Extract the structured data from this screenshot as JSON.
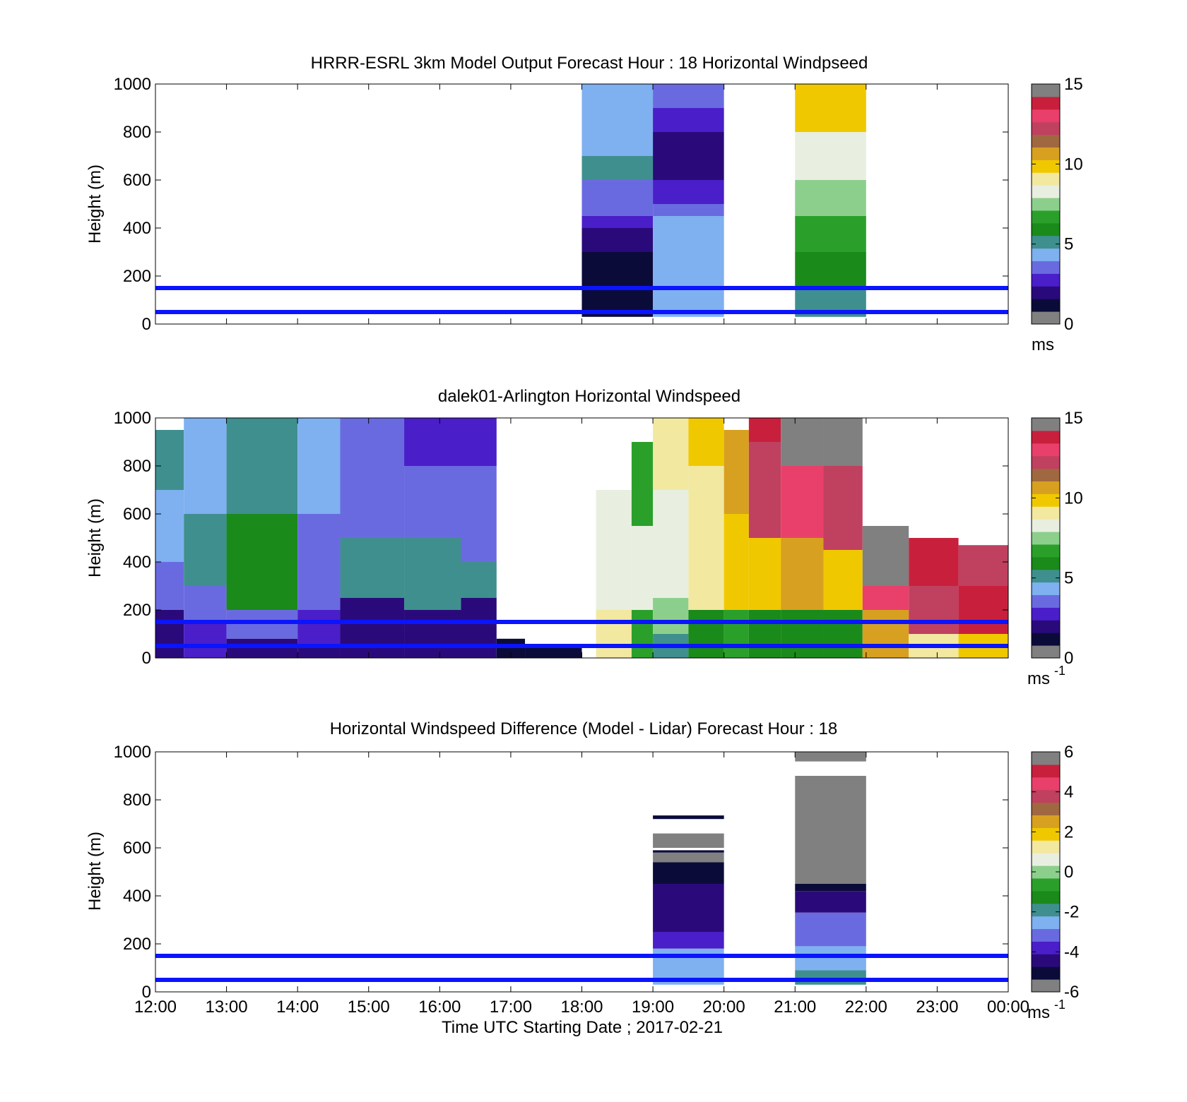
{
  "colors": {
    "ref_line": "#0a14ff",
    "colormap": [
      "#808080",
      "#0b0b3a",
      "#2a0a7a",
      "#4a1ec8",
      "#6a6ae0",
      "#7fb0f0",
      "#3f8f8f",
      "#1a8a1a",
      "#2aa02a",
      "#8ccf8c",
      "#e8efe0",
      "#f2e8a0",
      "#f0c800",
      "#d8a020",
      "#a06840",
      "#c04060",
      "#e8406a",
      "#c8203c",
      "#808080"
    ]
  },
  "x_ticks": [
    "12:00",
    "13:00",
    "14:00",
    "15:00",
    "16:00",
    "17:00",
    "18:00",
    "19:00",
    "20:00",
    "21:00",
    "22:00",
    "23:00",
    "00:00"
  ],
  "x_axis_label": "Time UTC  Starting Date ; 2017-02-21",
  "ref_lines_m": [
    150,
    50
  ],
  "chart_data": [
    {
      "type": "heatmap",
      "title": "HRRR-ESRL 3km Model Output   Forecast Hour : 18 Horizontal Windpseed",
      "ylabel": "Height (m)",
      "ylim": [
        0,
        1000
      ],
      "yticks": [
        "0",
        "200",
        "400",
        "600",
        "800",
        "1000"
      ],
      "colorbar": {
        "ticks": [
          "0",
          "5",
          "10",
          "15"
        ],
        "range": [
          0,
          15
        ],
        "unit": "ms",
        "unit_sup": ""
      },
      "columns": [
        {
          "start_hour": 18,
          "end_hour": 19,
          "bands": [
            {
              "y0": 700,
              "y1": 1000,
              "value": 4.3
            },
            {
              "y0": 600,
              "y1": 700,
              "value": 5.0
            },
            {
              "y0": 500,
              "y1": 600,
              "value": 3.4
            },
            {
              "y0": 450,
              "y1": 500,
              "value": 3.2
            },
            {
              "y0": 400,
              "y1": 450,
              "value": 2.3
            },
            {
              "y0": 300,
              "y1": 400,
              "value": 1.4
            },
            {
              "y0": 30,
              "y1": 300,
              "value": 0.6
            }
          ]
        },
        {
          "start_hour": 19,
          "end_hour": 20,
          "bands": [
            {
              "y0": 900,
              "y1": 1000,
              "value": 3.3
            },
            {
              "y0": 800,
              "y1": 900,
              "value": 2.8
            },
            {
              "y0": 600,
              "y1": 800,
              "value": 1.9
            },
            {
              "y0": 500,
              "y1": 600,
              "value": 2.6
            },
            {
              "y0": 450,
              "y1": 500,
              "value": 3.2
            },
            {
              "y0": 350,
              "y1": 450,
              "value": 4.0
            },
            {
              "y0": 100,
              "y1": 350,
              "value": 4.3
            },
            {
              "y0": 30,
              "y1": 100,
              "value": 3.8
            }
          ]
        },
        {
          "start_hour": 21,
          "end_hour": 22,
          "bands": [
            {
              "y0": 800,
              "y1": 1000,
              "value": 9.6
            },
            {
              "y0": 600,
              "y1": 800,
              "value": 8.6
            },
            {
              "y0": 450,
              "y1": 600,
              "value": 7.8
            },
            {
              "y0": 300,
              "y1": 450,
              "value": 6.6
            },
            {
              "y0": 150,
              "y1": 300,
              "value": 5.9
            },
            {
              "y0": 30,
              "y1": 150,
              "value": 5.3
            }
          ]
        }
      ]
    },
    {
      "type": "heatmap",
      "title": "dalek01-Arlington  Horizontal Windspeed",
      "ylabel": "Height (m)",
      "ylim": [
        0,
        1000
      ],
      "yticks": [
        "0",
        "200",
        "400",
        "600",
        "800",
        "1000"
      ],
      "colorbar": {
        "ticks": [
          "0",
          "5",
          "10",
          "15"
        ],
        "range": [
          0,
          15
        ],
        "unit": "ms",
        "unit_sup": "-1"
      },
      "columns": [
        {
          "start_hour": 12.0,
          "end_hour": 12.4,
          "bands": [
            {
              "y0": 700,
              "y1": 950,
              "value": 5.0
            },
            {
              "y0": 400,
              "y1": 700,
              "value": 4.0
            },
            {
              "y0": 200,
              "y1": 400,
              "value": 3.2
            },
            {
              "y0": 0,
              "y1": 200,
              "value": 2.0
            }
          ]
        },
        {
          "start_hour": 12.4,
          "end_hour": 13.0,
          "bands": [
            {
              "y0": 600,
              "y1": 1000,
              "value": 3.8
            },
            {
              "y0": 300,
              "y1": 600,
              "value": 4.6
            },
            {
              "y0": 150,
              "y1": 300,
              "value": 3.6
            },
            {
              "y0": 0,
              "y1": 150,
              "value": 2.2
            }
          ]
        },
        {
          "start_hour": 13.0,
          "end_hour": 14.0,
          "bands": [
            {
              "y0": 600,
              "y1": 1000,
              "value": 5.2
            },
            {
              "y0": 200,
              "y1": 600,
              "value": 5.6
            },
            {
              "y0": 80,
              "y1": 200,
              "value": 3.3
            },
            {
              "y0": 0,
              "y1": 80,
              "value": 1.8
            }
          ]
        },
        {
          "start_hour": 14.0,
          "end_hour": 14.6,
          "bands": [
            {
              "y0": 600,
              "y1": 1000,
              "value": 4.2
            },
            {
              "y0": 200,
              "y1": 600,
              "value": 3.6
            },
            {
              "y0": 60,
              "y1": 200,
              "value": 2.4
            },
            {
              "y0": 0,
              "y1": 60,
              "value": 2.0
            }
          ]
        },
        {
          "start_hour": 14.6,
          "end_hour": 15.5,
          "bands": [
            {
              "y0": 850,
              "y1": 1000,
              "value": 3.0
            },
            {
              "y0": 500,
              "y1": 850,
              "value": 3.3
            },
            {
              "y0": 250,
              "y1": 500,
              "value": 5.4
            },
            {
              "y0": 0,
              "y1": 250,
              "value": 1.8
            }
          ]
        },
        {
          "start_hour": 15.5,
          "end_hour": 16.3,
          "bands": [
            {
              "y0": 800,
              "y1": 1000,
              "value": 2.6
            },
            {
              "y0": 500,
              "y1": 800,
              "value": 3.2
            },
            {
              "y0": 200,
              "y1": 500,
              "value": 5.3
            },
            {
              "y0": 0,
              "y1": 200,
              "value": 1.6
            }
          ]
        },
        {
          "start_hour": 16.3,
          "end_hour": 16.8,
          "bands": [
            {
              "y0": 800,
              "y1": 1000,
              "value": 2.2
            },
            {
              "y0": 400,
              "y1": 800,
              "value": 3.0
            },
            {
              "y0": 250,
              "y1": 400,
              "value": 4.6
            },
            {
              "y0": 0,
              "y1": 250,
              "value": 1.4
            }
          ]
        },
        {
          "start_hour": 16.8,
          "end_hour": 17.2,
          "bands": [
            {
              "y0": 0,
              "y1": 80,
              "value": 1.0
            }
          ]
        },
        {
          "start_hour": 17.2,
          "end_hour": 18.0,
          "bands": [
            {
              "y0": 0,
              "y1": 50,
              "value": 1.0
            }
          ]
        },
        {
          "start_hour": 18.2,
          "end_hour": 18.7,
          "bands": [
            {
              "y0": 500,
              "y1": 700,
              "value": 8.2
            },
            {
              "y0": 200,
              "y1": 500,
              "value": 8.6
            },
            {
              "y0": 0,
              "y1": 200,
              "value": 9.2
            }
          ]
        },
        {
          "start_hour": 18.7,
          "end_hour": 19.0,
          "bands": [
            {
              "y0": 550,
              "y1": 900,
              "value": 7.0
            },
            {
              "y0": 200,
              "y1": 550,
              "value": 8.4
            },
            {
              "y0": 0,
              "y1": 200,
              "value": 6.4
            }
          ]
        },
        {
          "start_hour": 19.0,
          "end_hour": 19.5,
          "bands": [
            {
              "y0": 700,
              "y1": 1000,
              "value": 9.2
            },
            {
              "y0": 250,
              "y1": 700,
              "value": 8.6
            },
            {
              "y0": 100,
              "y1": 250,
              "value": 7.2
            },
            {
              "y0": 0,
              "y1": 100,
              "value": 5.4
            }
          ]
        },
        {
          "start_hour": 19.5,
          "end_hour": 20.0,
          "bands": [
            {
              "y0": 800,
              "y1": 1000,
              "value": 9.6
            },
            {
              "y0": 200,
              "y1": 800,
              "value": 9.3
            },
            {
              "y0": 0,
              "y1": 200,
              "value": 6.0
            }
          ]
        },
        {
          "start_hour": 20.0,
          "end_hour": 20.35,
          "bands": [
            {
              "y0": 600,
              "y1": 950,
              "value": 11.0
            },
            {
              "y0": 200,
              "y1": 600,
              "value": 10.2
            },
            {
              "y0": 0,
              "y1": 200,
              "value": 6.6
            }
          ]
        },
        {
          "start_hour": 20.35,
          "end_hour": 20.8,
          "bands": [
            {
              "y0": 900,
              "y1": 1000,
              "value": 13.8
            },
            {
              "y0": 500,
              "y1": 900,
              "value": 12.8
            },
            {
              "y0": 200,
              "y1": 500,
              "value": 10.4
            },
            {
              "y0": 0,
              "y1": 200,
              "value": 6.0
            }
          ]
        },
        {
          "start_hour": 20.8,
          "end_hour": 21.4,
          "bands": [
            {
              "y0": 800,
              "y1": 1000,
              "value": 15.0
            },
            {
              "y0": 500,
              "y1": 800,
              "value": 13.4
            },
            {
              "y0": 200,
              "y1": 500,
              "value": 10.6
            },
            {
              "y0": 0,
              "y1": 200,
              "value": 5.8
            }
          ]
        },
        {
          "start_hour": 21.4,
          "end_hour": 21.95,
          "bands": [
            {
              "y0": 800,
              "y1": 1000,
              "value": 15.0
            },
            {
              "y0": 450,
              "y1": 800,
              "value": 12.6
            },
            {
              "y0": 200,
              "y1": 450,
              "value": 9.8
            },
            {
              "y0": 0,
              "y1": 200,
              "value": 5.6
            }
          ]
        },
        {
          "start_hour": 21.95,
          "end_hour": 22.6,
          "bands": [
            {
              "y0": 300,
              "y1": 550,
              "value": 15.0
            },
            {
              "y0": 200,
              "y1": 300,
              "value": 13.6
            },
            {
              "y0": 0,
              "y1": 200,
              "value": 11.2
            }
          ]
        },
        {
          "start_hour": 22.6,
          "end_hour": 23.3,
          "bands": [
            {
              "y0": 300,
              "y1": 500,
              "value": 14.0
            },
            {
              "y0": 100,
              "y1": 300,
              "value": 12.2
            },
            {
              "y0": 0,
              "y1": 100,
              "value": 9.4
            }
          ]
        },
        {
          "start_hour": 23.3,
          "end_hour": 24.0,
          "bands": [
            {
              "y0": 300,
              "y1": 470,
              "value": 12.4
            },
            {
              "y0": 100,
              "y1": 300,
              "value": 13.8
            },
            {
              "y0": 0,
              "y1": 100,
              "value": 10.0
            }
          ]
        }
      ]
    },
    {
      "type": "heatmap",
      "title": "Horizontal Windspeed Difference (Model - Lidar) Forecast Hour : 18",
      "ylabel": "Height (m)",
      "ylim": [
        0,
        1000
      ],
      "yticks": [
        "0",
        "200",
        "400",
        "600",
        "800",
        "1000"
      ],
      "colorbar": {
        "ticks": [
          "-6",
          "-4",
          "-2",
          "0",
          "2",
          "4",
          "6"
        ],
        "range": [
          -6,
          6
        ],
        "unit": "ms",
        "unit_sup": "-1"
      },
      "columns": [
        {
          "start_hour": 19,
          "end_hour": 20,
          "bands": [
            {
              "y0": 720,
              "y1": 735,
              "value": -5.6
            },
            {
              "y0": 600,
              "y1": 660,
              "value": -6.0
            },
            {
              "y0": 580,
              "y1": 590,
              "value": -5.6
            },
            {
              "y0": 540,
              "y1": 580,
              "value": -6.0
            },
            {
              "y0": 450,
              "y1": 540,
              "value": -5.2
            },
            {
              "y0": 250,
              "y1": 450,
              "value": -4.9
            },
            {
              "y0": 180,
              "y1": 250,
              "value": -3.9
            },
            {
              "y0": 30,
              "y1": 180,
              "value": -2.8
            }
          ]
        },
        {
          "start_hour": 21,
          "end_hour": 22,
          "bands": [
            {
              "y0": 960,
              "y1": 1000,
              "value": -6.0
            },
            {
              "y0": 450,
              "y1": 900,
              "value": -6.0
            },
            {
              "y0": 420,
              "y1": 450,
              "value": -5.6
            },
            {
              "y0": 330,
              "y1": 420,
              "value": -4.5
            },
            {
              "y0": 190,
              "y1": 330,
              "value": -3.6
            },
            {
              "y0": 90,
              "y1": 190,
              "value": -2.6
            },
            {
              "y0": 30,
              "y1": 90,
              "value": -1.7
            }
          ]
        }
      ]
    }
  ]
}
